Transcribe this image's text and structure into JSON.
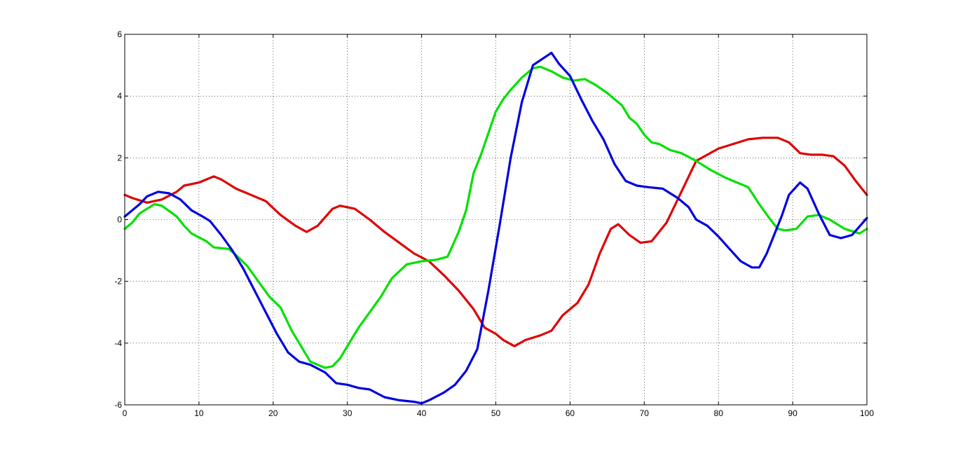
{
  "chart_data": {
    "type": "line",
    "title": "",
    "xlabel": "",
    "ylabel": "",
    "xlim": [
      0,
      100
    ],
    "ylim": [
      -6,
      6
    ],
    "grid": true,
    "x_ticks": [
      "0",
      "10",
      "20",
      "30",
      "40",
      "50",
      "60",
      "70",
      "80",
      "90",
      "100"
    ],
    "y_ticks": [
      "6",
      "4",
      "2",
      "0",
      "-2",
      "-4",
      "-6"
    ],
    "series": [
      {
        "color": "#e00000",
        "points": [
          [
            0,
            0.8
          ],
          [
            1,
            0.7
          ],
          [
            3,
            0.55
          ],
          [
            5,
            0.65
          ],
          [
            7,
            0.9
          ],
          [
            8,
            1.1
          ],
          [
            10,
            1.2
          ],
          [
            12,
            1.4
          ],
          [
            13,
            1.3
          ],
          [
            15,
            1.0
          ],
          [
            17,
            0.8
          ],
          [
            19,
            0.6
          ],
          [
            21,
            0.15
          ],
          [
            23,
            -0.2
          ],
          [
            24.5,
            -0.4
          ],
          [
            26,
            -0.2
          ],
          [
            28,
            0.35
          ],
          [
            29,
            0.45
          ],
          [
            31,
            0.35
          ],
          [
            33,
            0.0
          ],
          [
            35,
            -0.4
          ],
          [
            37,
            -0.75
          ],
          [
            39,
            -1.1
          ],
          [
            41,
            -1.35
          ],
          [
            43,
            -1.8
          ],
          [
            45,
            -2.3
          ],
          [
            47,
            -2.9
          ],
          [
            48.5,
            -3.5
          ],
          [
            50,
            -3.7
          ],
          [
            51,
            -3.9
          ],
          [
            52.5,
            -4.1
          ],
          [
            54,
            -3.9
          ],
          [
            56,
            -3.75
          ],
          [
            57.5,
            -3.6
          ],
          [
            59,
            -3.1
          ],
          [
            61,
            -2.7
          ],
          [
            62.5,
            -2.1
          ],
          [
            64,
            -1.1
          ],
          [
            65.5,
            -0.3
          ],
          [
            66.5,
            -0.15
          ],
          [
            68,
            -0.5
          ],
          [
            69.5,
            -0.75
          ],
          [
            71,
            -0.7
          ],
          [
            73,
            -0.1
          ],
          [
            75,
            0.9
          ],
          [
            77,
            1.9
          ],
          [
            78.5,
            2.1
          ],
          [
            80,
            2.3
          ],
          [
            82,
            2.45
          ],
          [
            84,
            2.6
          ],
          [
            86,
            2.65
          ],
          [
            88,
            2.65
          ],
          [
            89.5,
            2.5
          ],
          [
            91,
            2.15
          ],
          [
            92.5,
            2.1
          ],
          [
            94,
            2.1
          ],
          [
            95.5,
            2.05
          ],
          [
            97,
            1.75
          ],
          [
            98.5,
            1.25
          ],
          [
            100,
            0.8
          ]
        ]
      },
      {
        "color": "#00e000",
        "points": [
          [
            0,
            -0.3
          ],
          [
            1,
            -0.1
          ],
          [
            2,
            0.2
          ],
          [
            4,
            0.5
          ],
          [
            5,
            0.45
          ],
          [
            7,
            0.1
          ],
          [
            8,
            -0.2
          ],
          [
            9,
            -0.45
          ],
          [
            11,
            -0.7
          ],
          [
            12,
            -0.9
          ],
          [
            14,
            -0.95
          ],
          [
            15,
            -1.15
          ],
          [
            16.5,
            -1.5
          ],
          [
            18,
            -2.0
          ],
          [
            19.5,
            -2.5
          ],
          [
            21,
            -2.85
          ],
          [
            22.5,
            -3.6
          ],
          [
            24,
            -4.2
          ],
          [
            25,
            -4.6
          ],
          [
            27,
            -4.8
          ],
          [
            28,
            -4.75
          ],
          [
            29,
            -4.5
          ],
          [
            30,
            -4.1
          ],
          [
            31.5,
            -3.5
          ],
          [
            33,
            -3.0
          ],
          [
            34.5,
            -2.5
          ],
          [
            36,
            -1.9
          ],
          [
            38,
            -1.45
          ],
          [
            40,
            -1.35
          ],
          [
            42,
            -1.3
          ],
          [
            43.5,
            -1.2
          ],
          [
            45,
            -0.4
          ],
          [
            46,
            0.3
          ],
          [
            47,
            1.5
          ],
          [
            48,
            2.1
          ],
          [
            49,
            2.8
          ],
          [
            50,
            3.5
          ],
          [
            51,
            3.9
          ],
          [
            52,
            4.2
          ],
          [
            53.5,
            4.6
          ],
          [
            55,
            4.9
          ],
          [
            56,
            4.95
          ],
          [
            57.5,
            4.8
          ],
          [
            59,
            4.6
          ],
          [
            60.5,
            4.5
          ],
          [
            62,
            4.55
          ],
          [
            63.5,
            4.35
          ],
          [
            65,
            4.1
          ],
          [
            67,
            3.7
          ],
          [
            68,
            3.3
          ],
          [
            69,
            3.1
          ],
          [
            70,
            2.75
          ],
          [
            71,
            2.5
          ],
          [
            72,
            2.45
          ],
          [
            73.5,
            2.25
          ],
          [
            75,
            2.15
          ],
          [
            77,
            1.9
          ],
          [
            79,
            1.6
          ],
          [
            81,
            1.35
          ],
          [
            82.5,
            1.2
          ],
          [
            84,
            1.05
          ],
          [
            85.5,
            0.5
          ],
          [
            87,
            0.0
          ],
          [
            88,
            -0.3
          ],
          [
            89,
            -0.35
          ],
          [
            90.5,
            -0.3
          ],
          [
            92,
            0.1
          ],
          [
            93.5,
            0.15
          ],
          [
            95,
            0.0
          ],
          [
            97,
            -0.3
          ],
          [
            99,
            -0.45
          ],
          [
            100,
            -0.3
          ]
        ]
      },
      {
        "color": "#0000e0",
        "points": [
          [
            0,
            0.1
          ],
          [
            1,
            0.3
          ],
          [
            2,
            0.5
          ],
          [
            3,
            0.75
          ],
          [
            4.5,
            0.9
          ],
          [
            6,
            0.85
          ],
          [
            7.5,
            0.65
          ],
          [
            9,
            0.3
          ],
          [
            10.5,
            0.1
          ],
          [
            11.5,
            -0.05
          ],
          [
            13,
            -0.5
          ],
          [
            14.5,
            -1.0
          ],
          [
            16,
            -1.6
          ],
          [
            17.5,
            -2.3
          ],
          [
            19,
            -3.0
          ],
          [
            20.5,
            -3.7
          ],
          [
            22,
            -4.3
          ],
          [
            23.5,
            -4.6
          ],
          [
            25,
            -4.7
          ],
          [
            27,
            -4.95
          ],
          [
            28.5,
            -5.3
          ],
          [
            30,
            -5.35
          ],
          [
            31.5,
            -5.45
          ],
          [
            33,
            -5.5
          ],
          [
            35,
            -5.75
          ],
          [
            37,
            -5.85
          ],
          [
            39,
            -5.9
          ],
          [
            40,
            -5.95
          ],
          [
            41,
            -5.85
          ],
          [
            43,
            -5.6
          ],
          [
            44.5,
            -5.35
          ],
          [
            46,
            -4.9
          ],
          [
            47.5,
            -4.2
          ],
          [
            49,
            -2.3
          ],
          [
            50.5,
            -0.2
          ],
          [
            52,
            2.0
          ],
          [
            53.5,
            3.8
          ],
          [
            55,
            5.0
          ],
          [
            57.5,
            5.4
          ],
          [
            58.5,
            5.05
          ],
          [
            60,
            4.65
          ],
          [
            61.5,
            3.9
          ],
          [
            63,
            3.2
          ],
          [
            64.5,
            2.6
          ],
          [
            66,
            1.8
          ],
          [
            67.5,
            1.25
          ],
          [
            69,
            1.1
          ],
          [
            70.5,
            1.05
          ],
          [
            72.5,
            1.0
          ],
          [
            74.5,
            0.7
          ],
          [
            76,
            0.4
          ],
          [
            77,
            0.0
          ],
          [
            78.5,
            -0.2
          ],
          [
            80,
            -0.55
          ],
          [
            81.5,
            -0.95
          ],
          [
            83,
            -1.35
          ],
          [
            84.5,
            -1.55
          ],
          [
            85.5,
            -1.55
          ],
          [
            86.5,
            -1.1
          ],
          [
            87.5,
            -0.5
          ],
          [
            88.5,
            0.1
          ],
          [
            89.5,
            0.8
          ],
          [
            91,
            1.2
          ],
          [
            92,
            1.0
          ],
          [
            93.5,
            0.2
          ],
          [
            95,
            -0.5
          ],
          [
            96.5,
            -0.6
          ],
          [
            98,
            -0.5
          ],
          [
            100,
            0.05
          ]
        ]
      }
    ]
  }
}
